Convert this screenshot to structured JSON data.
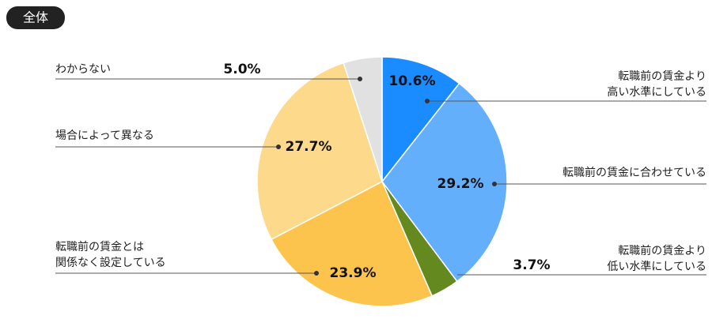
{
  "badge": "全体",
  "chart_data": {
    "type": "pie",
    "categories": [
      [
        "転職前の賃金より",
        "高い水準にしている"
      ],
      [
        "転職前の賃金に合わせている"
      ],
      [
        "転職前の賃金より",
        "低い水準にしている"
      ],
      [
        "転職前の賃金とは",
        "関係なく設定している"
      ],
      [
        "場合によって異なる"
      ],
      [
        "わからない"
      ]
    ],
    "values": [
      10.6,
      29.2,
      3.7,
      23.9,
      27.7,
      5.0
    ],
    "value_labels": [
      "10.6%",
      "29.2%",
      "3.7%",
      "23.9%",
      "27.7%",
      "5.0%"
    ],
    "colors": [
      "#1a8cff",
      "#64affc",
      "#64891f",
      "#fcc44d",
      "#fdd98c",
      "#e1e1e1"
    ]
  }
}
